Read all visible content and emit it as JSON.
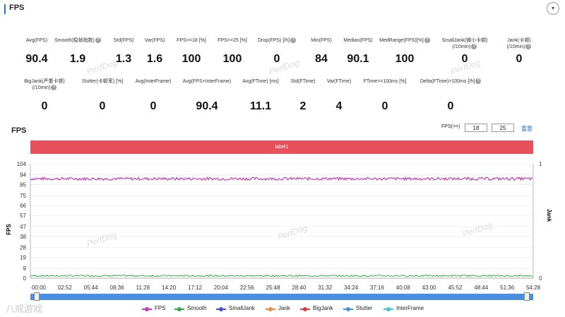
{
  "header": {
    "title": "FPS",
    "collapse_icon": "▾"
  },
  "stats_row1": [
    {
      "label": "Avg(FPS)",
      "value": "90.4",
      "help": false
    },
    {
      "label": "Smooth(稳帧指数)",
      "value": "1.9",
      "help": true
    },
    {
      "label": "Std(FPS)",
      "value": "1.3",
      "help": false
    },
    {
      "label": "Var(FPS)",
      "value": "1.6",
      "help": false
    },
    {
      "label": "FPS>=18 [%]",
      "value": "100",
      "help": false
    },
    {
      "label": "FPS>=25 [%]",
      "value": "100",
      "help": false
    },
    {
      "label": "Drop(FPS) [/h]",
      "value": "0",
      "help": true
    },
    {
      "label": "Min(FPS)",
      "value": "84",
      "help": false
    },
    {
      "label": "Median(FPS)",
      "value": "90.1",
      "help": false
    },
    {
      "label": "MedRange(FPS)[%]",
      "value": "100",
      "help": true
    },
    {
      "label": "SmallJank(微小卡顿)",
      "label2": "(/10min)",
      "value": "0",
      "help": true
    },
    {
      "label": "Jank(卡顿)",
      "label2": "(/10min)",
      "value": "0",
      "help": true
    }
  ],
  "stats_row2": [
    {
      "label": "BigJank(严重卡顿)",
      "label2": "(/10min)",
      "value": "0",
      "help": true
    },
    {
      "label": "Stutter(卡顿率) [%]",
      "value": "0",
      "help": false
    },
    {
      "label": "Avg(InterFrame)",
      "value": "0",
      "help": false
    },
    {
      "label": "Avg(FPS+InterFrame)",
      "value": "90.4",
      "help": false
    },
    {
      "label": "Avg(FTime) [ms]",
      "value": "11.1",
      "help": false
    },
    {
      "label": "Std(FTime)",
      "value": "2",
      "help": false
    },
    {
      "label": "Var(FTime)",
      "value": "4",
      "help": false
    },
    {
      "label": "FTime>=100ms [%]",
      "value": "0",
      "help": false
    },
    {
      "label": "Delta(FTime)>100ms [/h]",
      "value": "0",
      "help": true
    }
  ],
  "watermark": "PerfDog",
  "chart_section": {
    "title": "FPS",
    "filter_label": "FPS(>=)",
    "filter_values": [
      "18",
      "25"
    ],
    "reset_label": "重置",
    "label_bar": "label1"
  },
  "logo_text": "八戒游戏",
  "colors": {
    "accent": "#2f6fd6",
    "label_bar": "#e8505b",
    "fps": "#c23ab8",
    "smooth": "#3aa845",
    "slider": "#4a90e2"
  },
  "chart_data": {
    "type": "line",
    "ylabel": "FPS",
    "y2label": "Jank",
    "yticks": [
      0,
      9,
      19,
      28,
      38,
      47,
      57,
      66,
      75,
      85,
      94,
      104
    ],
    "ylim": [
      0,
      104
    ],
    "y2ticks": [
      0,
      1
    ],
    "x_ticks": [
      "00:00",
      "02:52",
      "05:44",
      "08:36",
      "11:28",
      "14:20",
      "17:12",
      "20:04",
      "22:56",
      "25:48",
      "28:40",
      "31:32",
      "34:24",
      "37:16",
      "40:08",
      "43:00",
      "45:52",
      "48:44",
      "51:36",
      "54:28"
    ],
    "series": [
      {
        "name": "FPS",
        "approx_value": 90.4,
        "color": "#c23ab8"
      },
      {
        "name": "Smooth",
        "approx_value": 1.9,
        "color": "#3aa845"
      },
      {
        "name": "SmallJank",
        "approx_value": 0,
        "color": "#4b4bd6"
      },
      {
        "name": "Jank",
        "approx_value": 0,
        "color": "#f08a3a"
      },
      {
        "name": "BigJank",
        "approx_value": 0,
        "color": "#d64040"
      },
      {
        "name": "Stutter",
        "approx_value": 0,
        "color": "#4a90e2"
      },
      {
        "name": "InterFrame",
        "approx_value": 0,
        "color": "#3ec7d6"
      }
    ],
    "grid": true,
    "legend": "bottom"
  }
}
